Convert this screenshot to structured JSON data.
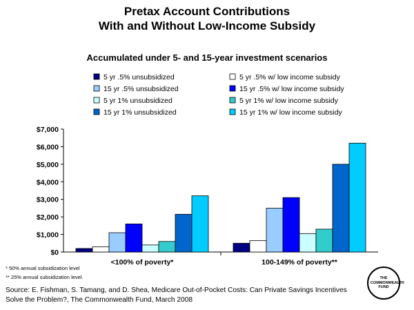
{
  "header": {
    "title_line1": "Pretax Account Contributions",
    "title_line2": "With and Without Low-Income Subsidy"
  },
  "footnotes": {
    "note1": "* 50% annual subsidization level",
    "note2": "** 25% annual subsidization level."
  },
  "source": {
    "line1": "Source: E. Fishman, S. Tamang, and D. Shea, Medicare Out-of-Pocket Costs: Can Private Savings Incentives",
    "line2": "Solve the Problem?, The Commonwealth Fund, March 2008"
  },
  "logo": {
    "text": "THE\nCOMMONWEALTH\nFUND"
  },
  "chart_data": {
    "type": "bar",
    "title": "Accumulated under 5- and 15-year investment scenarios",
    "categories": [
      "<100% of poverty*",
      "100-149% of poverty**"
    ],
    "ylim": [
      0,
      7000
    ],
    "yticks": [
      "$0",
      "$1,000",
      "$2,000",
      "$3,000",
      "$4,000",
      "$5,000",
      "$6,000",
      "$7,000"
    ],
    "grid": false,
    "legend_position": "top",
    "series": [
      {
        "name": "5 yr .5% unsubsidized",
        "color": "#000080",
        "values": [
          200,
          500
        ]
      },
      {
        "name": "5 yr .5% w/ low income subsidy",
        "color": "#ffffff",
        "values": [
          300,
          650
        ]
      },
      {
        "name": "15 yr .5% unsubsidized",
        "color": "#99ccff",
        "values": [
          1100,
          2500
        ]
      },
      {
        "name": "15 yr .5% w/ low income subsidy",
        "color": "#0000ff",
        "values": [
          1600,
          3100
        ]
      },
      {
        "name": "5 yr 1% unsubsidized",
        "color": "#ccffff",
        "values": [
          400,
          1050
        ]
      },
      {
        "name": "5 yr 1% w/ low income subsidy",
        "color": "#33cccc",
        "values": [
          600,
          1300
        ]
      },
      {
        "name": "15 yr 1% unsubsidized",
        "color": "#0066cc",
        "values": [
          2150,
          5000
        ]
      },
      {
        "name": "15 yr 1% w/ low income subsidy",
        "color": "#00ccff",
        "values": [
          3200,
          6200
        ]
      }
    ]
  }
}
